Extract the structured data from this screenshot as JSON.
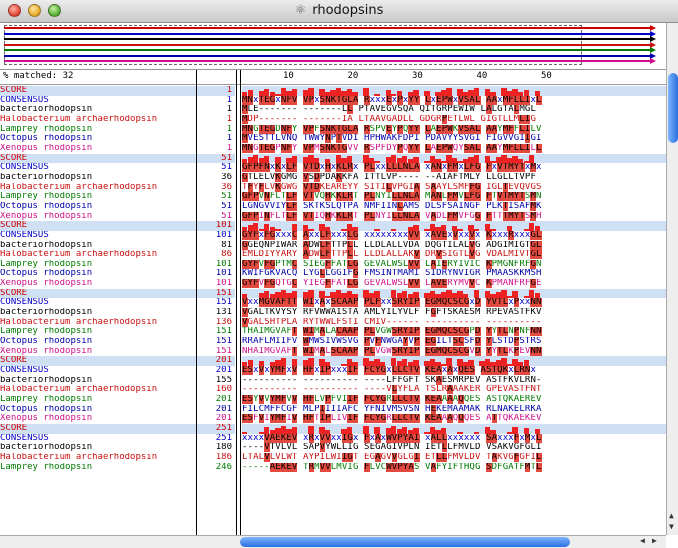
{
  "window": {
    "title": "rhodopsins"
  },
  "header": {
    "matched_label": "% matched: 32",
    "ruler": [
      "10",
      "20",
      "30",
      "40",
      "50"
    ]
  },
  "overview": {
    "colors": [
      "#d00000",
      "#0000cc",
      "#000000",
      "#c81010",
      "#007a00",
      "#0000aa",
      "#d0108a"
    ]
  },
  "blocks": [
    {
      "start": "1",
      "rows": [
        {
          "name": "SCORE",
          "num": "1",
          "seq": ""
        },
        {
          "name": "CONSENSUS",
          "num": "1",
          "seq": "MNxTEGxNFV VPxSNKTGLA RxxxExPxYY LxEPWxVSAL AAxMFLLIxL"
        },
        {
          "name": "bacteriorhodopsin",
          "num": "1",
          "seq": "MLE------- -------LL PTAVEGVSQA QITGRPEWIW LALGTALMGL"
        },
        {
          "name": "Halobacterium archaerhodopsin",
          "num": "1",
          "seq": "MDP------- -------IA LTAAVGADLL GDGRPETLWL GIGTLLMLIG"
        },
        {
          "name": "Lamprey rhodopsin",
          "num": "1",
          "seq": "MNGTEGDNFY VPFSNKTGLA RSPVEYPQYY LAEPWKVSAL AAYMFFLILV"
        },
        {
          "name": "Octopus rhodopsin",
          "num": "1",
          "seq": "MVESTTLVNQ TWWYNPTVDI HPHWAKFDPI PDAVYYSVGI FIGVVGIIGI"
        },
        {
          "name": "Xenopus rhodopsin",
          "num": "1",
          "seq": "MNGTEGPNFY VPMSNKTGVV RSPFDYPQYY LAEPWQYSAL AAYMFLLILL"
        }
      ]
    },
    {
      "start": "51",
      "rows": [
        {
          "name": "SCORE",
          "num": "51",
          "seq": ""
        },
        {
          "name": "CONSENSUS",
          "num": "51",
          "seq": "GFPFNxKxLF VTDxHxKLRx PLxxLLLNLA xANxFMxLFG FxVTMYTxMx"
        },
        {
          "name": "bacteriorhodopsin",
          "num": "36",
          "seq": "GTLELVKGMG VSDPDAKKFA ITTLVP---- --AIAFTMLY LLGLLTVPF"
        },
        {
          "name": "Halobacterium archaerhodopsin",
          "num": "36",
          "seq": "TFYFLVKGWG VTDKEAREYY SITILVPGIA SAAYLSMFFG IGLTEVQVGS"
        },
        {
          "name": "Lamprey rhodopsin",
          "num": "51",
          "seq": "GFPVNFLTLF VTVQHKKLRT PLNYILLNLA MANLFMVLFG FTVTMYTSMN"
        },
        {
          "name": "Octopus rhodopsin",
          "num": "51",
          "seq": "LGNGVVIYLF SKTKSLQTPA NMFIINLAMS DLSFSAINGF PLKTISAFMK"
        },
        {
          "name": "Xenopus rhodopsin",
          "num": "51",
          "seq": "GFPINFLTLF VTIQHKKLRT PLNYILLNLA VADLFMVFGG FTTTMYTSMH"
        }
      ]
    },
    {
      "start": "101",
      "rows": [
        {
          "name": "SCORE",
          "num": "101",
          "seq": ""
        },
        {
          "name": "CONSENSUS",
          "num": "101",
          "seq": "GYFxFGxxxC AxxLFxxxLG xxxxxxxxVV xAVExVxxVx KxxxRxxxGL"
        },
        {
          "name": "bacteriorhodopsin",
          "num": "81",
          "seq": "GGEQNPIWAR ADWLFTTPLL LLDLALLVDA DQGTILALVG ADGIMIGTGL"
        },
        {
          "name": "Halobacterium archaerhodopsin",
          "num": "86",
          "seq": "EMLDIYYARY ADWLFTTPLL LLDLALLAKV DRVSIGTLVG VDALMIVTGL"
        },
        {
          "name": "Lamprey rhodopsin",
          "num": "101",
          "seq": "GYFVFGPTMC SIEGFFATLG GEVALWSLVV LAIERYIVIC KPMGNFRFGN"
        },
        {
          "name": "Octopus rhodopsin",
          "num": "101",
          "seq": "KWIFGKVACQ LYGLLGGIFG FMSINTMAMI SIDRYNVIGR PMAASKKMSH"
        },
        {
          "name": "Xenopus rhodopsin",
          "num": "101",
          "seq": "GYFVFGQTGC YIEGFFATLG GEVALWSLVV LAVERYMVVC KPMANFRFGE"
        }
      ]
    },
    {
      "start": "151",
      "rows": [
        {
          "name": "SCORE",
          "num": "151",
          "seq": ""
        },
        {
          "name": "CONSENSUS",
          "num": "151",
          "seq": "VxxMGVAFTT WIxAxSCAAP PLFxxSRYIP EGMQCSCGxD YVTLxPxxNN"
        },
        {
          "name": "bacteriorhodopsin",
          "num": "131",
          "seq": "VGALTKVYSY RFVWWAISTA AMLYILYVLF FGFTSKAESM RPEVASTFKV"
        },
        {
          "name": "Halobacterium archaerhodopsin",
          "num": "136",
          "seq": "VGALSHTPLA RYTWWLFSTI CMIV------ ---------- ----------"
        },
        {
          "name": "Lamprey rhodopsin",
          "num": "151",
          "seq": "THAIMGVAFT WIMALACAAP PLVGWSRYIP EGMQCSCGPD YYTLNPNFNN"
        },
        {
          "name": "Octopus rhodopsin",
          "num": "151",
          "seq": "RRAFLMIIFV WMWSIVWSVG PVFNWGAYVP EGILTSCSFD YLSTDPSTRS"
        },
        {
          "name": "Xenopus rhodopsin",
          "num": "151",
          "seq": "NHAIMGVAFT WIMALSCAAP PLVGWSRYIP EGMQCSCGVD YYTLKPEVNN"
        }
      ]
    },
    {
      "start": "201",
      "rows": [
        {
          "name": "SCORE",
          "num": "201",
          "seq": ""
        },
        {
          "name": "CONSENSUS",
          "num": "201",
          "seq": "ESxVxYMFxV HFxIPxxxIF FCYGxLLCTV KEAxAxQES ASTQKxLRNx"
        },
        {
          "name": "bacteriorhodopsin",
          "num": "155",
          "seq": "---------- ---------- ----LFFGFT SKAESMRPEV ASTFKVLRN-"
        },
        {
          "name": "Halobacterium archaerhodopsin",
          "num": "160",
          "seq": "---------- ---------- ----VLYFLA TSLRAAAKER GPEVASTFNT"
        },
        {
          "name": "Lamprey rhodopsin",
          "num": "201",
          "seq": "ESYVVYMFVV HFLVPFVIIF FCYGRLLCTV KEAAAAQQES ASTQKAEREV"
        },
        {
          "name": "Octopus rhodopsin",
          "num": "201",
          "seq": "FILCMFFCGF MLPIIIIAFC YFNIVMSVSN HEKEMAAMAK RLNAKELRKA"
        },
        {
          "name": "Xenopus rhodopsin",
          "num": "201",
          "seq": "ESFVIYMFIV HFTIPLIVIF FCYGRLLCTV KEAAAQQQES ATTQKAEKEV"
        }
      ]
    },
    {
      "start": "251",
      "rows": [
        {
          "name": "SCORE",
          "num": "251",
          "seq": ""
        },
        {
          "name": "CONSENSUS",
          "num": "251",
          "seq": "xxxxVAEKEV xRxVVxxIGx FxAxWVPYAI xALLxxxxxx SAxxxFxMxL"
        },
        {
          "name": "bacteriorhodopsin",
          "num": "180",
          "seq": "----VTVLVL SAPVYWLLIG SEGAGIVPLN IETLLFMVLD VSAKVGFGLI"
        },
        {
          "name": "Halobacterium archaerhodopsin",
          "num": "186",
          "seq": "LTALVLVLWT AYPILWIIGT EGAGVVGLGI ETLLFMVLDV TAKVGFGFIL"
        },
        {
          "name": "Lamprey rhodopsin",
          "num": "246",
          "seq": "-----AEKEV TRMVVLMVIG FLVCWVPYAS VAFYIFTHQG SDFGATFMTL"
        }
      ]
    }
  ]
}
